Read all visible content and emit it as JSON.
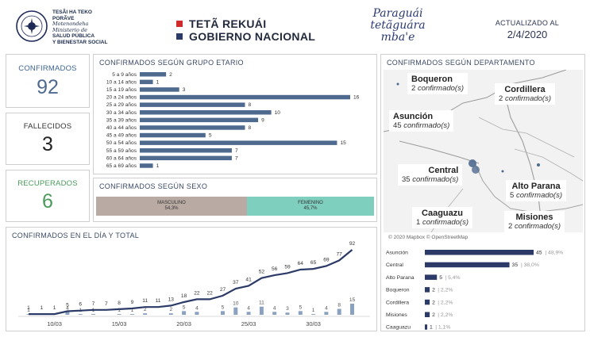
{
  "header": {
    "ministry_line1": "TESÃI HA TEKO",
    "ministry_line2": "PORÃVE",
    "ministry_line3": "Motenondeha",
    "ministry_line4": "Ministerio de",
    "ministry_line5": "SALUD PÚBLICA",
    "ministry_line6": "Y BIENESTAR SOCIAL",
    "gov_line1": "TETÃ REKUÁI",
    "gov_line2": "GOBIERNO NACIONAL",
    "script_logo": "Paraguái tetãguára mba'e",
    "updated_label": "ACTUALIZADO AL",
    "updated_date": "2/4/2020"
  },
  "colors": {
    "navy": "#4f6a8f",
    "dark_navy": "#2b3a66",
    "green": "#7cbf8a",
    "masc": "#b9aba3",
    "fem": "#7fcfbf",
    "red": "#d02a2a"
  },
  "kpis": {
    "confirmed": {
      "label": "CONFIRMADOS",
      "value": "92"
    },
    "deaths": {
      "label": "FALLECIDOS",
      "value": "3"
    },
    "recovered": {
      "label": "RECUPERADOS",
      "value": "6"
    }
  },
  "age_chart": {
    "title": "CONFIRMADOS SEGÚN GRUPO ETARIO",
    "chart_data": {
      "type": "bar",
      "orientation": "horizontal",
      "categories": [
        "5 a 9 años",
        "10 a 14 años",
        "15 a 19 años",
        "20 a 24 años",
        "25 a 29 años",
        "30 a 34 años",
        "35 a 39 años",
        "40 a 44 años",
        "45 a 49 años",
        "50 a 54 años",
        "55 a 59 años",
        "60 a 64 años",
        "65 a 69 años"
      ],
      "values": [
        2,
        1,
        3,
        16,
        8,
        10,
        9,
        8,
        5,
        15,
        7,
        7,
        1
      ],
      "xlim": [
        0,
        16
      ]
    }
  },
  "sex_chart": {
    "title": "CONFIRMADOS SEGÚN SEXO",
    "male_label": "MASCULINO",
    "male_pct": "54,3%",
    "female_label": "FEMENINO",
    "female_pct": "45,7%",
    "male_share": 0.543,
    "female_share": 0.457
  },
  "cases_chart": {
    "title": "CONFIRMADOS EN EL DÍA Y TOTAL",
    "chart_data": {
      "type": "line",
      "x_tick_labels": [
        "10/03",
        "15/03",
        "20/03",
        "25/03",
        "30/03"
      ],
      "x_tick_index": [
        2,
        7,
        12,
        17,
        22
      ],
      "series": [
        {
          "values": [
            1,
            1,
            1,
            5,
            6,
            7,
            7,
            8,
            9,
            11,
            11,
            13,
            18,
            22,
            22,
            27,
            37,
            41,
            52,
            56,
            59,
            64,
            65,
            69,
            77,
            92
          ]
        },
        {
          "values": [
            1,
            0,
            0,
            4,
            1,
            1,
            0,
            1,
            1,
            2,
            0,
            2,
            5,
            4,
            0,
            5,
            10,
            4,
            11,
            4,
            3,
            5,
            1,
            4,
            8,
            15
          ]
        }
      ]
    }
  },
  "dept_map": {
    "title": "CONFIRMADOS SEGÚN DEPARTAMENTO",
    "attribution": "© 2020 Mapbox © OpenStreetMap",
    "unit": "confirmado(s)",
    "labels": [
      {
        "name": "Boqueron",
        "count": "2"
      },
      {
        "name": "Cordillera",
        "count": "2"
      },
      {
        "name": "Asunción",
        "count": "45"
      },
      {
        "name": "Central",
        "count": "35"
      },
      {
        "name": "Alto Parana",
        "count": "5"
      },
      {
        "name": "Caaguazu",
        "count": "1"
      },
      {
        "name": "Misiones",
        "count": "2"
      }
    ]
  },
  "dept_bars": {
    "chart_data": {
      "type": "bar",
      "orientation": "horizontal",
      "categories": [
        "Asunción",
        "Central",
        "Alto Parana",
        "Boqueron",
        "Cordillera",
        "Misiones",
        "Caaguazu"
      ],
      "values": [
        45,
        35,
        5,
        2,
        2,
        2,
        1
      ],
      "percent_labels": [
        "48,9%",
        "38,0%",
        "5,4%",
        "2,2%",
        "2,2%",
        "2,2%",
        "1,1%"
      ],
      "xlim": [
        0,
        45
      ]
    }
  }
}
